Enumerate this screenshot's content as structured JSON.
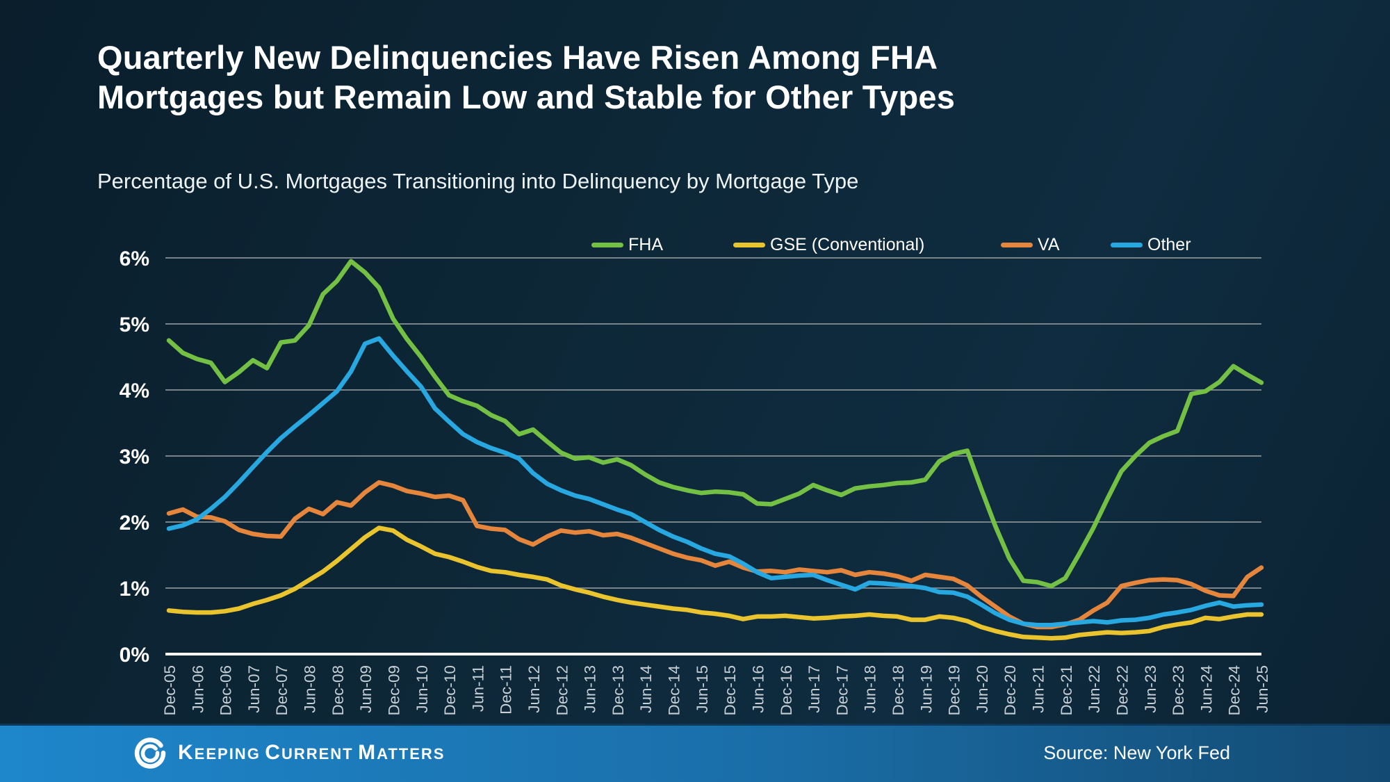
{
  "header": {
    "title": "Quarterly New Delinquencies Have Risen Among FHA Mortgages but Remain Low and Stable for Other Types",
    "subtitle": "Percentage of U.S. Mortgages Transitioning into Delinquency by Mortgage Type"
  },
  "footer": {
    "brand_word1": "K",
    "brand_word1_rest": "EEPING",
    "brand_word2": "C",
    "brand_word2_rest": "URRENT",
    "brand_word3": "M",
    "brand_word3_rest": "ATTERS",
    "source": "Source: New York Fed"
  },
  "colors": {
    "background": "#0d2737",
    "grid": "#79838a",
    "zero_axis": "#ffffff",
    "footer_left": "#1e86cb",
    "footer_right": "#134a72"
  },
  "chart_data": {
    "type": "line",
    "title": "Quarterly New Delinquencies Have Risen Among FHA Mortgages but Remain Low and Stable for Other Types",
    "subtitle": "Percentage of U.S. Mortgages Transitioning into Delinquency by Mortgage Type",
    "xlabel": "",
    "ylabel": "",
    "ylim": [
      0,
      6
    ],
    "yticks": [
      0,
      1,
      2,
      3,
      4,
      5,
      6
    ],
    "ytick_suffix": "%",
    "grid": true,
    "legend_position": "top",
    "points_per_label": 2,
    "x_labels": [
      "Dec-05",
      "Jun-06",
      "Dec-06",
      "Jun-07",
      "Dec-07",
      "Jun-08",
      "Dec-08",
      "Jun-09",
      "Dec-09",
      "Jun-10",
      "Dec-10",
      "Jun-11",
      "Dec-11",
      "Jun-12",
      "Dec-12",
      "Jun-13",
      "Dec-13",
      "Jun-14",
      "Dec-14",
      "Jun-15",
      "Dec-15",
      "Jun-16",
      "Dec-16",
      "Jun-17",
      "Dec-17",
      "Jun-18",
      "Dec-18",
      "Jun-19",
      "Dec-19",
      "Jun-20",
      "Dec-20",
      "Jun-21",
      "Dec-21",
      "Jun-22",
      "Dec-22",
      "Jun-23",
      "Dec-23",
      "Jun-24",
      "Dec-24",
      "Jun-25"
    ],
    "series": [
      {
        "name": "FHA",
        "color": "#74c045",
        "values": [
          4.75,
          4.56,
          4.47,
          4.41,
          4.12,
          4.27,
          4.45,
          4.33,
          4.72,
          4.75,
          4.98,
          5.45,
          5.65,
          5.95,
          5.78,
          5.55,
          5.08,
          4.77,
          4.5,
          4.2,
          3.92,
          3.83,
          3.76,
          3.62,
          3.53,
          3.33,
          3.4,
          3.22,
          3.05,
          2.96,
          2.98,
          2.9,
          2.95,
          2.86,
          2.72,
          2.6,
          2.53,
          2.48,
          2.44,
          2.46,
          2.45,
          2.42,
          2.28,
          2.27,
          2.35,
          2.43,
          2.56,
          2.48,
          2.41,
          2.51,
          2.54,
          2.56,
          2.59,
          2.6,
          2.64,
          2.92,
          3.03,
          3.08,
          2.5,
          1.94,
          1.45,
          1.11,
          1.09,
          1.03,
          1.15,
          1.52,
          1.91,
          2.35,
          2.77,
          3.0,
          3.2,
          3.3,
          3.38,
          3.94,
          3.98,
          4.12,
          4.36,
          4.23,
          4.11
        ]
      },
      {
        "name": "GSE (Conventional)",
        "color": "#e9c42e",
        "values": [
          0.66,
          0.64,
          0.63,
          0.63,
          0.65,
          0.69,
          0.76,
          0.82,
          0.89,
          0.99,
          1.12,
          1.25,
          1.41,
          1.59,
          1.77,
          1.91,
          1.87,
          1.73,
          1.63,
          1.52,
          1.47,
          1.4,
          1.32,
          1.26,
          1.24,
          1.2,
          1.17,
          1.13,
          1.04,
          0.98,
          0.93,
          0.87,
          0.82,
          0.78,
          0.75,
          0.72,
          0.69,
          0.67,
          0.63,
          0.61,
          0.58,
          0.53,
          0.57,
          0.57,
          0.58,
          0.56,
          0.54,
          0.55,
          0.57,
          0.58,
          0.6,
          0.58,
          0.57,
          0.52,
          0.52,
          0.57,
          0.55,
          0.5,
          0.41,
          0.35,
          0.3,
          0.26,
          0.25,
          0.24,
          0.25,
          0.29,
          0.31,
          0.33,
          0.32,
          0.33,
          0.35,
          0.41,
          0.45,
          0.48,
          0.55,
          0.53,
          0.57,
          0.6,
          0.6
        ]
      },
      {
        "name": "VA",
        "color": "#e5863c",
        "values": [
          2.13,
          2.19,
          2.08,
          2.07,
          2.01,
          1.88,
          1.82,
          1.79,
          1.78,
          2.05,
          2.2,
          2.12,
          2.3,
          2.25,
          2.45,
          2.6,
          2.55,
          2.47,
          2.43,
          2.38,
          2.4,
          2.33,
          1.94,
          1.9,
          1.88,
          1.74,
          1.66,
          1.78,
          1.87,
          1.84,
          1.86,
          1.8,
          1.82,
          1.76,
          1.68,
          1.6,
          1.52,
          1.46,
          1.42,
          1.34,
          1.4,
          1.31,
          1.25,
          1.26,
          1.24,
          1.28,
          1.26,
          1.24,
          1.27,
          1.2,
          1.24,
          1.22,
          1.18,
          1.11,
          1.2,
          1.17,
          1.14,
          1.04,
          0.87,
          0.72,
          0.57,
          0.46,
          0.41,
          0.41,
          0.45,
          0.52,
          0.66,
          0.78,
          1.03,
          1.08,
          1.12,
          1.13,
          1.12,
          1.06,
          0.96,
          0.89,
          0.88,
          1.17,
          1.31
        ]
      },
      {
        "name": "Other",
        "color": "#28a8e0",
        "values": [
          1.9,
          1.95,
          2.04,
          2.2,
          2.38,
          2.6,
          2.83,
          3.06,
          3.27,
          3.45,
          3.62,
          3.8,
          3.98,
          4.28,
          4.7,
          4.78,
          4.52,
          4.28,
          4.05,
          3.72,
          3.52,
          3.33,
          3.21,
          3.12,
          3.05,
          2.96,
          2.74,
          2.58,
          2.48,
          2.4,
          2.35,
          2.27,
          2.19,
          2.12,
          2.0,
          1.88,
          1.78,
          1.7,
          1.6,
          1.52,
          1.48,
          1.37,
          1.24,
          1.15,
          1.17,
          1.19,
          1.2,
          1.12,
          1.05,
          0.98,
          1.08,
          1.07,
          1.05,
          1.03,
          1.0,
          0.94,
          0.93,
          0.87,
          0.75,
          0.62,
          0.52,
          0.46,
          0.44,
          0.44,
          0.46,
          0.48,
          0.5,
          0.48,
          0.51,
          0.52,
          0.55,
          0.6,
          0.63,
          0.67,
          0.73,
          0.78,
          0.72,
          0.74,
          0.75
        ]
      }
    ]
  }
}
